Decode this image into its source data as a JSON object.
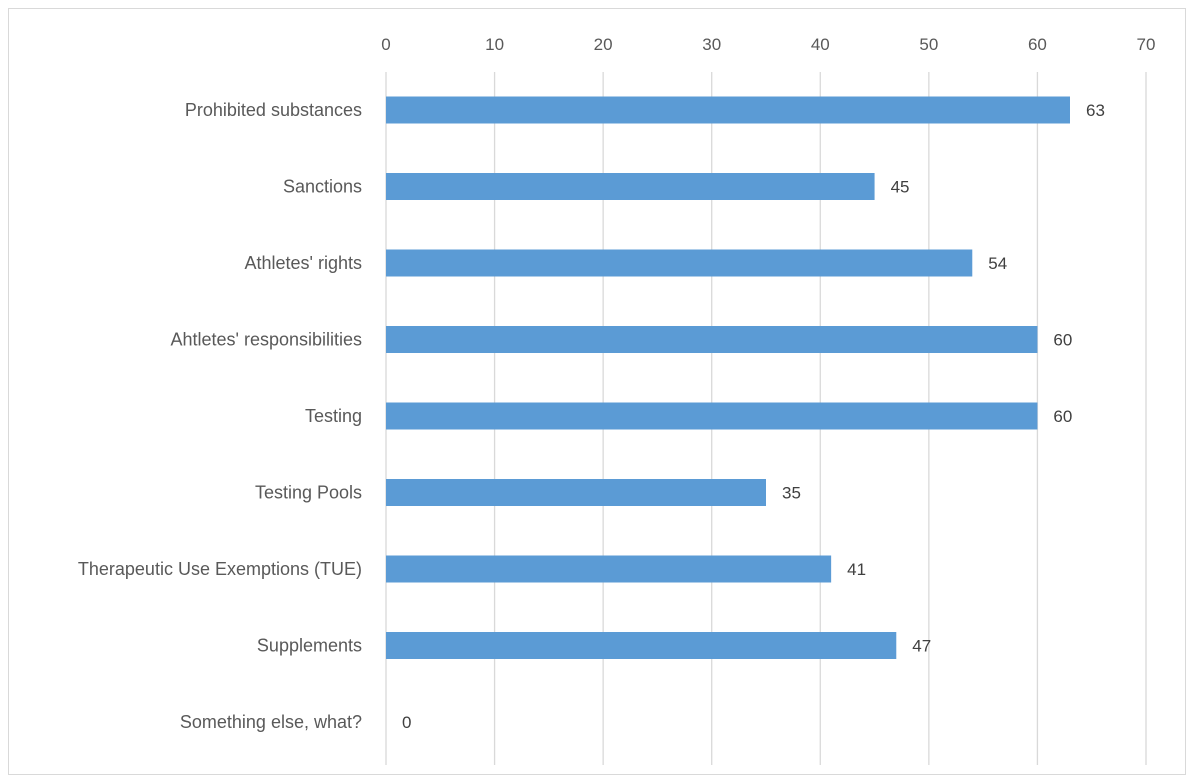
{
  "chart_data": {
    "type": "bar",
    "orientation": "horizontal",
    "title": "",
    "xlabel": "",
    "ylabel": "",
    "xlim": [
      0,
      70
    ],
    "x_ticks": [
      0,
      10,
      20,
      30,
      40,
      50,
      60,
      70
    ],
    "x_axis_position": "top",
    "grid": true,
    "legend": "none",
    "bar_color": "#5b9bd5",
    "categories": [
      "Prohibited substances",
      "Sanctions",
      "Athletes' rights",
      "Ahtletes' responsibilities",
      "Testing",
      "Testing Pools",
      "Therapeutic Use Exemptions (TUE)",
      "Supplements",
      "Something else, what?"
    ],
    "values": [
      63,
      45,
      54,
      60,
      60,
      35,
      41,
      47,
      0
    ]
  }
}
